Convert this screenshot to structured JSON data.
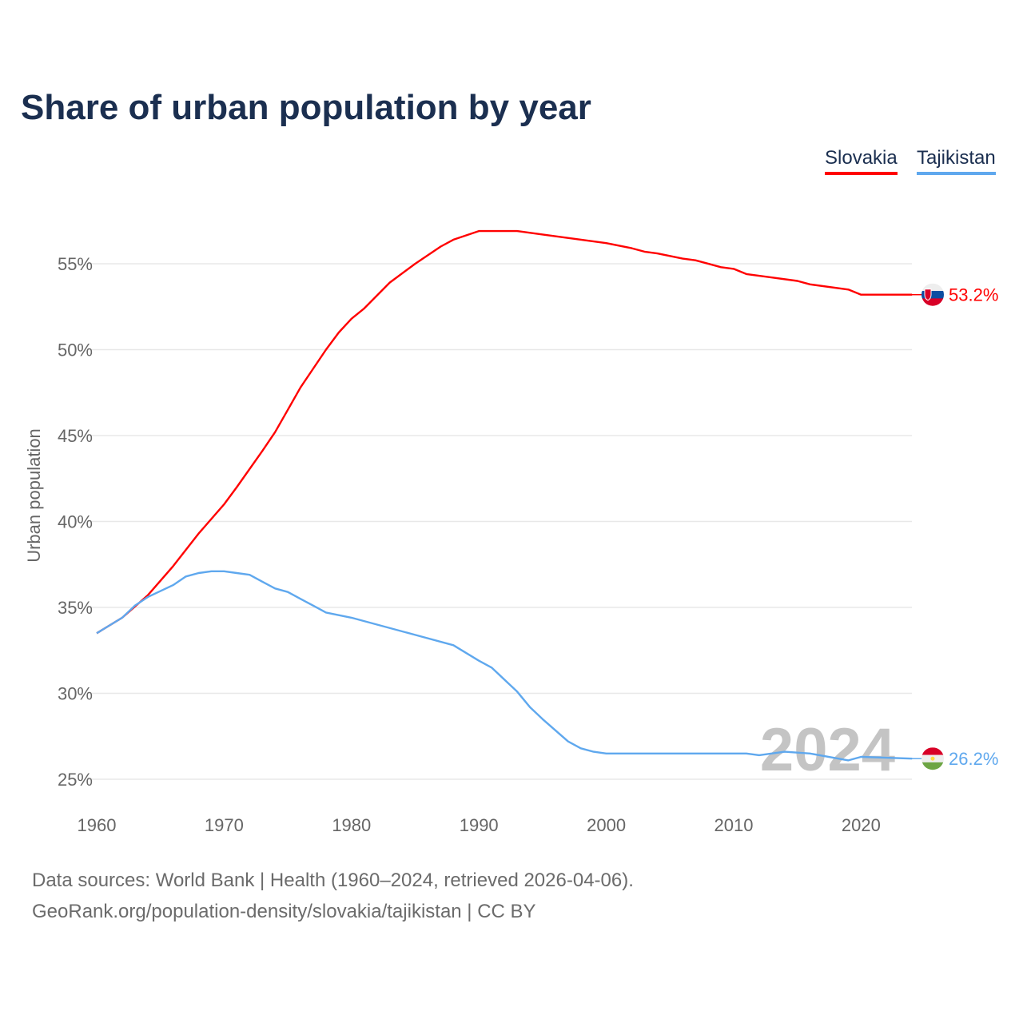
{
  "title": "Share of urban population by year",
  "legend": [
    {
      "name": "Slovakia",
      "color": "#ff0000"
    },
    {
      "name": "Tajikistan",
      "color": "#5fa8ee"
    }
  ],
  "footer": {
    "line1": "Data sources: World Bank | Health (1960–2024, retrieved 2026-04-06).",
    "line2": "GeoRank.org/population-density/slovakia/tajikistan | CC BY"
  },
  "chart_data": {
    "type": "line",
    "title": "Share of urban population by year",
    "xlabel": "",
    "ylabel": "Urban population",
    "xlim": [
      1960,
      2024
    ],
    "ylim": [
      25,
      57.5
    ],
    "x_ticks": [
      1960,
      1970,
      1980,
      1990,
      2000,
      2010,
      2020
    ],
    "y_ticks": [
      {
        "v": 25,
        "label": "25%"
      },
      {
        "v": 30,
        "label": "30%"
      },
      {
        "v": 35,
        "label": "35%"
      },
      {
        "v": 40,
        "label": "40%"
      },
      {
        "v": 45,
        "label": "45%"
      },
      {
        "v": 50,
        "label": "50%"
      },
      {
        "v": 55,
        "label": "55%"
      }
    ],
    "grid": true,
    "year_watermark": "2024",
    "series": [
      {
        "name": "Slovakia",
        "color": "#ff0000",
        "end_label": "53.2%",
        "flag": "slovakia-flag",
        "points": [
          [
            1960,
            33.5
          ],
          [
            1962,
            34.4
          ],
          [
            1964,
            35.7
          ],
          [
            1966,
            37.4
          ],
          [
            1968,
            39.3
          ],
          [
            1970,
            41.0
          ],
          [
            1971,
            42.0
          ],
          [
            1973,
            44.1
          ],
          [
            1974,
            45.2
          ],
          [
            1975,
            46.5
          ],
          [
            1976,
            47.8
          ],
          [
            1978,
            50.0
          ],
          [
            1979,
            51.0
          ],
          [
            1980,
            51.8
          ],
          [
            1981,
            52.4
          ],
          [
            1983,
            53.9
          ],
          [
            1985,
            55.0
          ],
          [
            1987,
            56.0
          ],
          [
            1988,
            56.4
          ],
          [
            1990,
            56.9
          ],
          [
            1993,
            56.9
          ],
          [
            1995,
            56.7
          ],
          [
            2000,
            56.2
          ],
          [
            2002,
            55.9
          ],
          [
            2003,
            55.7
          ],
          [
            2004,
            55.6
          ],
          [
            2006,
            55.3
          ],
          [
            2007,
            55.2
          ],
          [
            2009,
            54.8
          ],
          [
            2010,
            54.7
          ],
          [
            2011,
            54.4
          ],
          [
            2012,
            54.3
          ],
          [
            2013,
            54.2
          ],
          [
            2015,
            54.0
          ],
          [
            2016,
            53.8
          ],
          [
            2019,
            53.5
          ],
          [
            2020,
            53.2
          ],
          [
            2024,
            53.2
          ]
        ]
      },
      {
        "name": "Tajikistan",
        "color": "#5fa8ee",
        "end_label": "26.2%",
        "flag": "tajikistan-flag",
        "points": [
          [
            1960,
            33.5
          ],
          [
            1962,
            34.4
          ],
          [
            1963,
            35.1
          ],
          [
            1964,
            35.6
          ],
          [
            1966,
            36.3
          ],
          [
            1967,
            36.8
          ],
          [
            1968,
            37.0
          ],
          [
            1969,
            37.1
          ],
          [
            1970,
            37.1
          ],
          [
            1971,
            37.0
          ],
          [
            1972,
            36.9
          ],
          [
            1973,
            36.5
          ],
          [
            1974,
            36.1
          ],
          [
            1975,
            35.9
          ],
          [
            1976,
            35.5
          ],
          [
            1977,
            35.1
          ],
          [
            1978,
            34.7
          ],
          [
            1980,
            34.4
          ],
          [
            1985,
            33.4
          ],
          [
            1988,
            32.8
          ],
          [
            1990,
            31.9
          ],
          [
            1991,
            31.5
          ],
          [
            1993,
            30.1
          ],
          [
            1994,
            29.2
          ],
          [
            1995,
            28.5
          ],
          [
            1997,
            27.2
          ],
          [
            1998,
            26.8
          ],
          [
            1999,
            26.6
          ],
          [
            2000,
            26.5
          ],
          [
            2011,
            26.5
          ],
          [
            2012,
            26.4
          ],
          [
            2014,
            26.6
          ],
          [
            2016,
            26.5
          ],
          [
            2019,
            26.1
          ],
          [
            2020,
            26.3
          ],
          [
            2024,
            26.2
          ]
        ]
      }
    ]
  }
}
